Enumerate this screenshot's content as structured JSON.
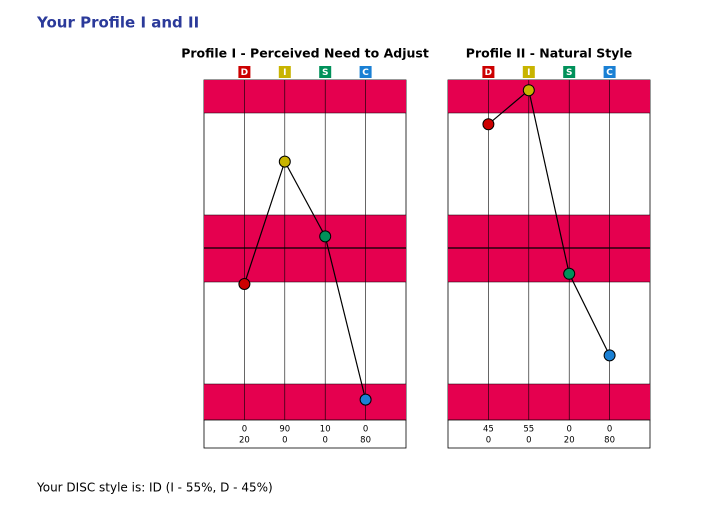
{
  "header": {
    "title": "Your Profile I and II"
  },
  "chart_data": [
    {
      "type": "line",
      "title": "Profile I - Perceived Need to Adjust",
      "categories": [
        "D",
        "I",
        "S",
        "C"
      ],
      "values": [
        40,
        76,
        54,
        6
      ],
      "colors": [
        "#cc0000",
        "#c8b400",
        "#00915a",
        "#1a80d4"
      ],
      "line_color": "#000000",
      "ylim": [
        0,
        100
      ],
      "table": {
        "rows": [
          [
            0,
            90,
            10,
            0
          ],
          [
            20,
            0,
            0,
            80
          ]
        ]
      }
    },
    {
      "type": "line",
      "title": "Profile II - Natural Style",
      "categories": [
        "D",
        "I",
        "S",
        "C"
      ],
      "values": [
        87,
        97,
        43,
        19
      ],
      "colors": [
        "#cc0000",
        "#c8b400",
        "#00915a",
        "#1a80d4"
      ],
      "line_color": "#000000",
      "ylim": [
        0,
        100
      ],
      "table": {
        "rows": [
          [
            45,
            55,
            0,
            0
          ],
          [
            0,
            0,
            20,
            80
          ]
        ]
      }
    }
  ],
  "footer": {
    "text": "Your DISC style is: ID (I - 55%, D - 45%)"
  }
}
